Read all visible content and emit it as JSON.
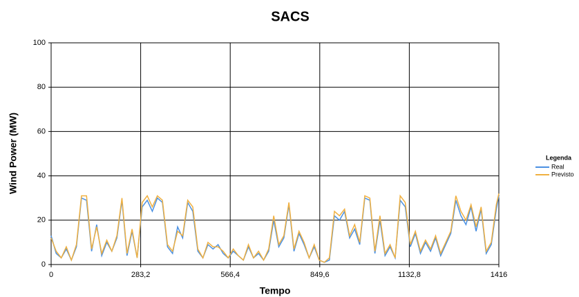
{
  "chart_data": {
    "type": "line",
    "title": "SACS",
    "x_label": "Tempo",
    "y_label": "Wind Power (MW)",
    "legend_title": "Legenda",
    "legend_position": "right",
    "grid": true,
    "xlim": [
      0,
      1416
    ],
    "ylim": [
      0,
      100
    ],
    "xticks": [
      0,
      {
        "value": 283.2,
        "label": "283,2"
      },
      {
        "value": 566.4,
        "label": "566,4"
      },
      {
        "value": 849.6,
        "label": "849,6"
      },
      {
        "value": 1132.8,
        "label": "1132,8"
      },
      1416
    ],
    "yticks": [
      0,
      20,
      40,
      60,
      80,
      100
    ],
    "x": [
      0,
      16,
      32,
      48,
      64,
      80,
      96,
      112,
      128,
      144,
      160,
      176,
      192,
      208,
      224,
      240,
      256,
      272,
      288,
      304,
      320,
      336,
      352,
      368,
      384,
      400,
      416,
      432,
      448,
      464,
      480,
      496,
      512,
      528,
      544,
      560,
      576,
      592,
      608,
      624,
      640,
      656,
      672,
      688,
      704,
      720,
      736,
      752,
      768,
      784,
      800,
      816,
      832,
      848,
      864,
      880,
      896,
      912,
      928,
      944,
      960,
      976,
      992,
      1008,
      1024,
      1040,
      1056,
      1072,
      1088,
      1104,
      1120,
      1136,
      1152,
      1168,
      1184,
      1200,
      1216,
      1232,
      1248,
      1264,
      1280,
      1296,
      1312,
      1328,
      1344,
      1360,
      1376,
      1392,
      1408,
      1416
    ],
    "series": [
      {
        "name": "Real",
        "color": "#4a90e2",
        "values": [
          13,
          5,
          3,
          7,
          2,
          8,
          30,
          29,
          6,
          18,
          4,
          10,
          6,
          12,
          29,
          4,
          15,
          3,
          26,
          29,
          24,
          30,
          28,
          8,
          5,
          17,
          12,
          28,
          24,
          6,
          3,
          9,
          7,
          9,
          5,
          3,
          6,
          4,
          2,
          8,
          3,
          5,
          2,
          6,
          20,
          8,
          12,
          27,
          6,
          14,
          9,
          3,
          8,
          2,
          1,
          2,
          22,
          20,
          24,
          12,
          16,
          9,
          30,
          29,
          5,
          20,
          4,
          8,
          3,
          29,
          26,
          8,
          14,
          5,
          10,
          6,
          12,
          4,
          9,
          14,
          29,
          22,
          18,
          26,
          15,
          25,
          5,
          9,
          25,
          31
        ]
      },
      {
        "name": "Previsto",
        "color": "#f0b040",
        "values": [
          12,
          6,
          3,
          8,
          2,
          9,
          31,
          31,
          7,
          17,
          5,
          11,
          6,
          13,
          30,
          5,
          16,
          3,
          28,
          31,
          26,
          31,
          29,
          9,
          6,
          15,
          13,
          29,
          26,
          7,
          3,
          10,
          8,
          8,
          6,
          3,
          7,
          4,
          2,
          9,
          3,
          6,
          2,
          7,
          22,
          9,
          13,
          28,
          7,
          15,
          10,
          3,
          9,
          2,
          1,
          3,
          24,
          22,
          25,
          13,
          18,
          10,
          31,
          30,
          6,
          22,
          5,
          9,
          3,
          31,
          28,
          9,
          15,
          6,
          11,
          7,
          13,
          5,
          10,
          15,
          31,
          24,
          20,
          27,
          17,
          26,
          6,
          10,
          27,
          32
        ]
      }
    ]
  }
}
